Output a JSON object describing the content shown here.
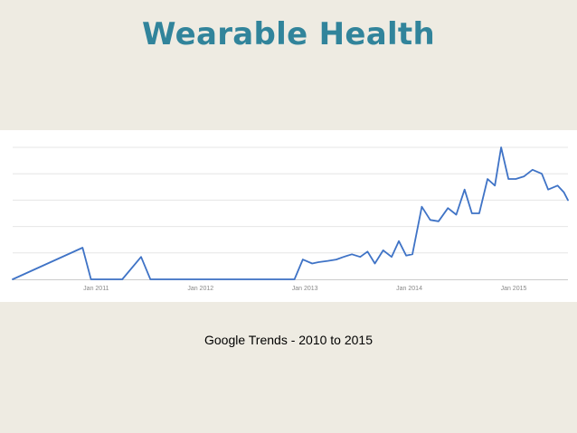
{
  "slide": {
    "title": "Wearable Health",
    "caption": "Google Trends - 2010 to 2015"
  },
  "colors": {
    "background": "#EEEBE2",
    "title": "#31849B",
    "line": "#3F73C6",
    "grid": "#E6E6E6",
    "axis": "#CCCCCC"
  },
  "chart_data": {
    "type": "line",
    "title": "",
    "xlabel": "",
    "ylabel": "",
    "xlim": [
      2010.2,
      2015.52
    ],
    "ylim": [
      0,
      100
    ],
    "grid": true,
    "gridlines_y": [
      20,
      40,
      60,
      80,
      100
    ],
    "x_ticks": [
      {
        "label": "Jan 2011",
        "value": 2011
      },
      {
        "label": "Jan 2012",
        "value": 2012
      },
      {
        "label": "Jan 2013",
        "value": 2013
      },
      {
        "label": "Jan 2014",
        "value": 2014
      },
      {
        "label": "Jan 2015",
        "value": 2015
      }
    ],
    "series": [
      {
        "x": [
          2010.2,
          2010.87,
          2010.95,
          2011.03,
          2011.25,
          2011.43,
          2011.52,
          2011.6,
          2012.9,
          2012.98,
          2013.07,
          2013.13,
          2013.22,
          2013.3,
          2013.37,
          2013.45,
          2013.53,
          2013.6,
          2013.67,
          2013.75,
          2013.83,
          2013.9,
          2013.97,
          2014.03,
          2014.12,
          2014.2,
          2014.28,
          2014.37,
          2014.45,
          2014.53,
          2014.6,
          2014.67,
          2014.75,
          2014.82,
          2014.88,
          2014.95,
          2015.02,
          2015.1,
          2015.18,
          2015.27,
          2015.33,
          2015.42,
          2015.48,
          2015.52
        ],
        "y": [
          0,
          24,
          0,
          0,
          0,
          17,
          0,
          0,
          0,
          15,
          12,
          13,
          14,
          15,
          17,
          19,
          17,
          21,
          12,
          22,
          17,
          29,
          18,
          19,
          55,
          45,
          44,
          54,
          49,
          68,
          50,
          50,
          76,
          71,
          100,
          76,
          76,
          78,
          83,
          80,
          68,
          71,
          66,
          60
        ]
      }
    ]
  }
}
